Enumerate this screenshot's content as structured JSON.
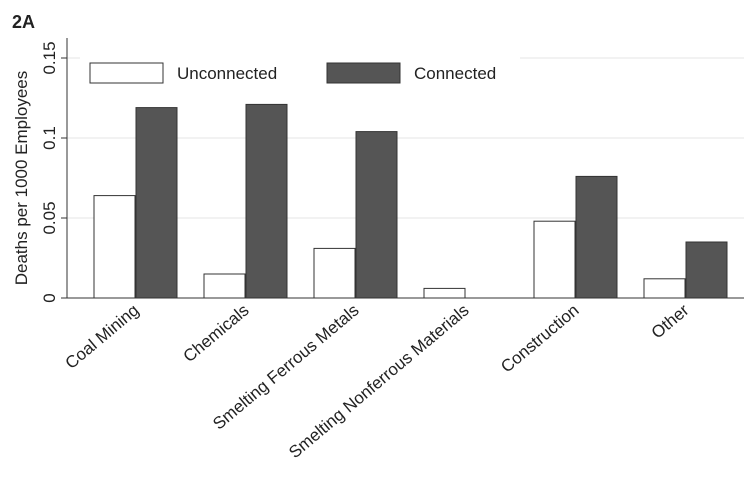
{
  "chart_data": {
    "type": "bar",
    "panel_label": "2A",
    "y_label": "Deaths per 1000 Employees",
    "categories": [
      "Coal Mining",
      "Chemicals",
      "Smelting Ferrous Metals",
      "Smelting Nonferrous Materials",
      "Construction",
      "Other"
    ],
    "series": [
      {
        "name": "Unconnected",
        "color": "#ffffff",
        "values": [
          0.064,
          0.015,
          0.031,
          0.006,
          0.048,
          0.012
        ]
      },
      {
        "name": "Connected",
        "color": "#555555",
        "values": [
          0.119,
          0.121,
          0.104,
          null,
          0.076,
          0.035
        ]
      }
    ],
    "ylim": [
      0,
      0.15
    ],
    "yticks": [
      0,
      0.05,
      0.1,
      0.15
    ],
    "grid": true,
    "legend": "top"
  }
}
